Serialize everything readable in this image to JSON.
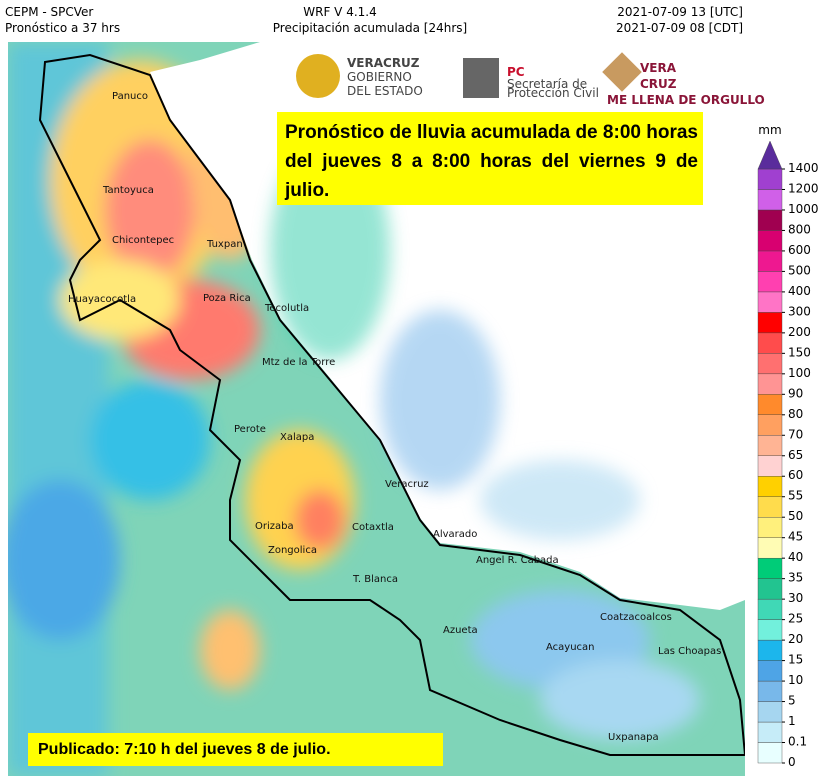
{
  "header": {
    "source": "CEPM - SPCVer",
    "lead": "Pronóstico a 37 hrs",
    "model": "WRF V 4.1.4",
    "product": "Precipitación acumulada [24hrs]",
    "utc": "2021-07-09 13 [UTC]",
    "local": "2021-07-09 08 [CDT]"
  },
  "logos": {
    "gov_1": "VERACRUZ",
    "gov_2": "GOBIERNO",
    "gov_3": "DEL ESTADO",
    "pc": "PC",
    "pc_1": "Secretaría de",
    "pc_2": "Protección Civil",
    "vera": "VERA",
    "cruz": "CRUZ",
    "slogan": "ME LLENA DE ORGULLO"
  },
  "notice": "Pronóstico de lluvia acumulada de 8:00 horas del jueves 8 a 8:00 horas del viernes 9 de julio.",
  "published": "Publicado: 7:10 h del jueves 8 de julio.",
  "cities": [
    "Panuco",
    "Tantoyuca",
    "Chicontepec",
    "Tuxpan",
    "Huayacocotla",
    "Poza Rica",
    "Tecolutla",
    "Mtz de la Torre",
    "Perote",
    "Xalapa",
    "Veracruz",
    "Orizaba",
    "Cotaxtla",
    "Alvarado",
    "Zongolica",
    "Angel R. Cabada",
    "T. Blanca",
    "Azueta",
    "Coatzacoalcos",
    "Acayucan",
    "Las Choapas",
    "Uxpanapa"
  ],
  "colorbar": {
    "unit": "mm",
    "levels": [
      0,
      0.1,
      1,
      5,
      10,
      15,
      20,
      25,
      30,
      35,
      40,
      45,
      50,
      55,
      60,
      65,
      70,
      80,
      90,
      100,
      150,
      200,
      300,
      400,
      500,
      600,
      800,
      1000,
      1200,
      1400
    ],
    "colors": [
      "#e8ffff",
      "#c6ecf8",
      "#a6d6f0",
      "#78b8ea",
      "#4ea4e6",
      "#1cb6ec",
      "#72f0dc",
      "#40d8b6",
      "#22c490",
      "#00cc78",
      "#fffcb4",
      "#fff07c",
      "#ffdc4c",
      "#ffd000",
      "#ffd2d2",
      "#ffb494",
      "#ffa060",
      "#ff8a2c",
      "#ff9494",
      "#ff7070",
      "#ff4c4c",
      "#ff0000",
      "#ff74c6",
      "#ff40b0",
      "#ee1890",
      "#d80070",
      "#a00050",
      "#d060e8",
      "#a040d0"
    ],
    "over_color": "#5a2c9c"
  }
}
